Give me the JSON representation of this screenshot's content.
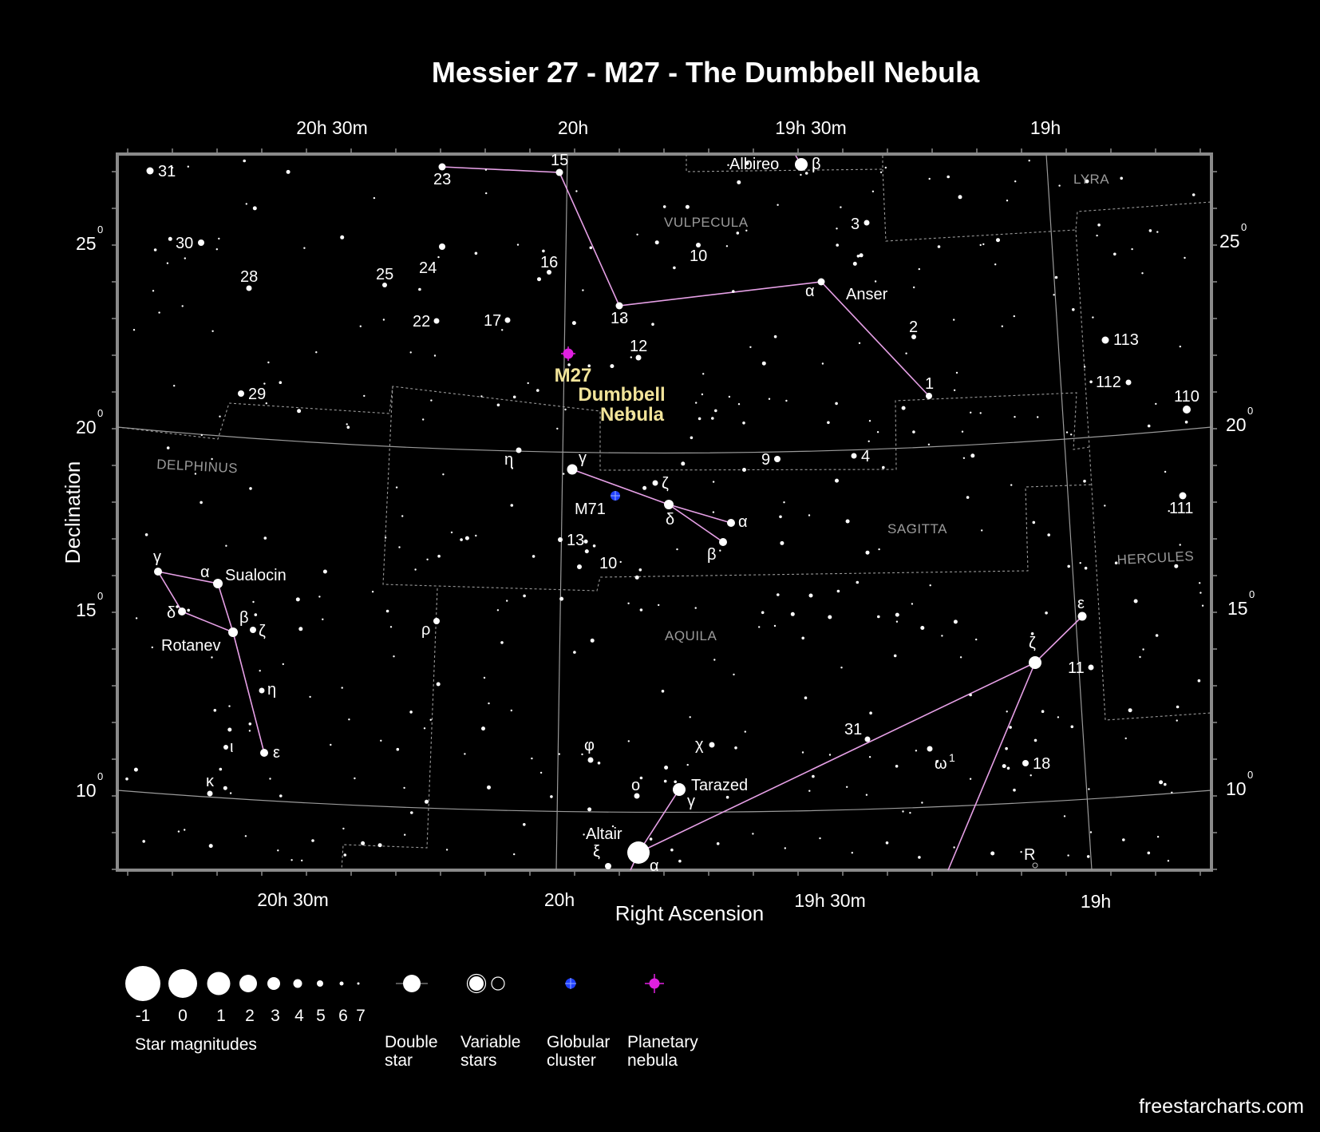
{
  "title": "Messier 27 - M27 - The Dumbbell Nebula",
  "axes": {
    "x_title": "Right Ascension",
    "y_title": "Declination",
    "ra_top": [
      "20h 30m",
      "20h",
      "19h 30m",
      "19h"
    ],
    "ra_bottom": [
      "20h 30m",
      "20h",
      "19h 30m",
      "19h"
    ],
    "dec_left": [
      "25",
      "20",
      "15",
      "10"
    ],
    "dec_right": [
      "25",
      "20",
      "15",
      "10"
    ],
    "degree_symbol": "0"
  },
  "target": {
    "id": "M27",
    "name_line1": "Dumbbell",
    "name_line2": "Nebula",
    "type": "Planetary nebula",
    "color": "#e020e0"
  },
  "constellations": [
    "Vulpecula",
    "Lyra",
    "Delphinus",
    "Sagitta",
    "Hercules",
    "Aquila"
  ],
  "star_labels": {
    "albireo": "Albireo",
    "albireo_greek": "β",
    "anser": "Anser",
    "anser_greek": "α",
    "sualocin": "Sualocin",
    "rotanev": "Rotanev",
    "tarazed": "Tarazed",
    "altair": "Altair",
    "m71": "M71",
    "r": "R",
    "numbers": [
      "31",
      "30",
      "28",
      "25",
      "24",
      "23",
      "15",
      "16",
      "17",
      "22",
      "13",
      "12",
      "10",
      "3",
      "2",
      "1",
      "113",
      "112",
      "110",
      "111",
      "29",
      "9",
      "4",
      "13",
      "10",
      "31",
      "18",
      "11"
    ],
    "greek": [
      "γ",
      "ζ",
      "δ",
      "α",
      "β",
      "η",
      "γ",
      "α",
      "δ",
      "β",
      "ζ",
      "η",
      "ι",
      "ε",
      "κ",
      "ρ",
      "φ",
      "χ",
      "ο",
      "γ",
      "ξ",
      "α",
      "ζ",
      "ε",
      "ω"
    ],
    "omega_super": "1"
  },
  "legend": {
    "magnitudes": [
      "-1",
      "0",
      "1",
      "2",
      "3",
      "4",
      "5",
      "6",
      "7"
    ],
    "magnitudes_label": "Star magnitudes",
    "double_star_1": "Double",
    "double_star_2": "star",
    "variable_1": "Variable",
    "variable_2": "stars",
    "globular_1": "Globular",
    "globular_2": "cluster",
    "planetary_1": "Planetary",
    "planetary_2": "nebula",
    "globular_color": "#2040ff",
    "planetary_color": "#e020e0"
  },
  "credit": "freestarcharts.com",
  "colors": {
    "background": "#000000",
    "lines": "#e6a0e6",
    "frame": "#8a8a8a",
    "m27_label": "#f2e49a"
  }
}
